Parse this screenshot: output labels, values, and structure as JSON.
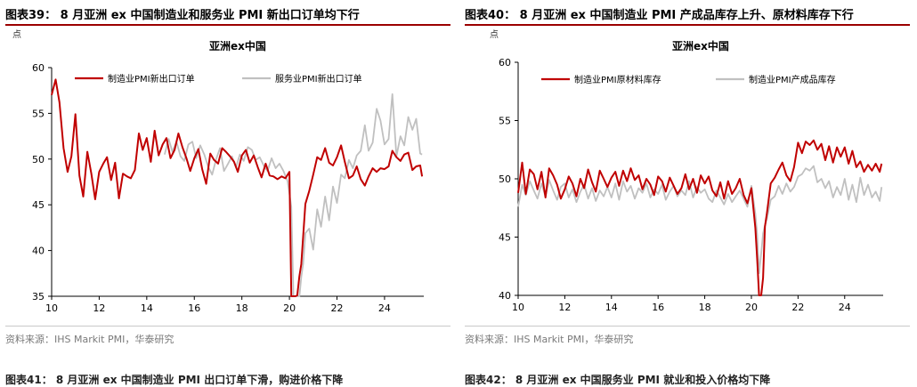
{
  "charts": [
    {
      "figure_title": "图表39： 8 月亚洲 ex 中国制造业和服务业 PMI 新出口订单均下行",
      "source": "资料来源：IHS Markit PMI，华泰研究",
      "next_title": "图表41： 8 月亚洲 ex 中国制造业 PMI 出口订单下滑，购进价格下降",
      "chart_data": {
        "type": "line",
        "title": "亚洲ex中国",
        "unit_label": "点",
        "ylim": [
          35,
          60
        ],
        "yticks": [
          35,
          40,
          45,
          50,
          55,
          60
        ],
        "xlim": [
          10,
          25.65
        ],
        "xticks": [
          10,
          12,
          14,
          16,
          18,
          20,
          22,
          24
        ],
        "xticklabels": [
          "10",
          "12",
          "14",
          "16",
          "18",
          "20",
          "22",
          "24"
        ],
        "legend_position": "top",
        "series": [
          {
            "name": "制造业PMI新出口订单",
            "color": "#c00000",
            "x": [
              10.0,
              10.17,
              10.33,
              10.5,
              10.67,
              10.83,
              11.0,
              11.17,
              11.33,
              11.5,
              11.67,
              11.83,
              12.0,
              12.17,
              12.33,
              12.5,
              12.67,
              12.83,
              13.0,
              13.17,
              13.33,
              13.5,
              13.67,
              13.83,
              14.0,
              14.17,
              14.33,
              14.5,
              14.67,
              14.83,
              15.0,
              15.17,
              15.33,
              15.5,
              15.67,
              15.83,
              16.0,
              16.17,
              16.33,
              16.5,
              16.67,
              16.83,
              17.0,
              17.17,
              17.33,
              17.5,
              17.67,
              17.83,
              18.0,
              18.17,
              18.33,
              18.5,
              18.67,
              18.83,
              19.0,
              19.17,
              19.33,
              19.5,
              19.67,
              19.83,
              20.0,
              20.08,
              20.17,
              20.25,
              20.33,
              20.42,
              20.5,
              20.67,
              20.83,
              21.0,
              21.17,
              21.33,
              21.5,
              21.67,
              21.83,
              22.0,
              22.17,
              22.33,
              22.5,
              22.67,
              22.83,
              23.0,
              23.17,
              23.33,
              23.5,
              23.67,
              23.83,
              24.0,
              24.17,
              24.33,
              24.5,
              24.67,
              24.83,
              25.0,
              25.17,
              25.33,
              25.5,
              25.58
            ],
            "y": [
              57.0,
              58.7,
              56.2,
              51.2,
              48.6,
              50.3,
              54.9,
              48.2,
              45.9,
              50.8,
              48.4,
              45.6,
              48.6,
              49.5,
              50.2,
              47.7,
              49.6,
              45.7,
              48.4,
              48.1,
              47.9,
              48.8,
              52.8,
              51.0,
              52.3,
              49.7,
              53.1,
              50.4,
              51.6,
              52.3,
              50.1,
              51.0,
              52.8,
              51.3,
              50.1,
              48.7,
              50.1,
              51.1,
              48.9,
              47.3,
              50.6,
              49.9,
              49.5,
              51.2,
              50.8,
              50.3,
              49.7,
              48.6,
              50.4,
              51.0,
              49.6,
              50.4,
              49.1,
              48.0,
              49.5,
              48.2,
              48.1,
              47.8,
              48.1,
              47.9,
              48.6,
              35.0,
              35.0,
              35.0,
              35.1,
              37.2,
              38.5,
              45.1,
              46.5,
              48.3,
              50.2,
              49.9,
              51.2,
              49.6,
              49.3,
              50.2,
              51.5,
              49.7,
              47.9,
              48.2,
              49.2,
              47.8,
              47.1,
              48.1,
              49.0,
              48.6,
              49.0,
              48.9,
              49.2,
              50.9,
              50.2,
              49.8,
              50.5,
              50.7,
              48.8,
              49.2,
              49.3,
              48.1
            ]
          },
          {
            "name": "服务业PMI新出口订单",
            "color": "#c0c0c0",
            "x": [
              14.75,
              14.92,
              15.08,
              15.25,
              15.42,
              15.58,
              15.75,
              15.92,
              16.08,
              16.25,
              16.42,
              16.58,
              16.75,
              16.92,
              17.08,
              17.25,
              17.42,
              17.58,
              17.75,
              17.92,
              18.08,
              18.25,
              18.42,
              18.58,
              18.75,
              18.92,
              19.08,
              19.25,
              19.42,
              19.58,
              19.75,
              19.92,
              20.08,
              20.17,
              20.25,
              20.33,
              20.42,
              20.5,
              20.58,
              20.67,
              20.83,
              21.0,
              21.17,
              21.33,
              21.5,
              21.67,
              21.83,
              22.0,
              22.17,
              22.33,
              22.5,
              22.67,
              22.83,
              23.0,
              23.17,
              23.33,
              23.5,
              23.67,
              23.83,
              24.0,
              24.17,
              24.33,
              24.5,
              24.67,
              24.83,
              25.0,
              25.17,
              25.33,
              25.5,
              25.58
            ],
            "y": [
              50.5,
              52.2,
              50.8,
              51.9,
              50.3,
              49.8,
              51.6,
              51.9,
              50.1,
              51.5,
              50.5,
              49.2,
              48.3,
              50.0,
              51.2,
              48.7,
              49.5,
              50.3,
              49.1,
              50.5,
              49.8,
              51.3,
              51.0,
              49.9,
              50.2,
              49.3,
              48.7,
              50.1,
              49.0,
              49.5,
              48.7,
              47.6,
              44.8,
              35.0,
              35.0,
              35.0,
              35.0,
              37.1,
              38.6,
              41.9,
              42.4,
              40.1,
              44.5,
              42.6,
              45.9,
              43.3,
              47.0,
              45.2,
              48.3,
              47.9,
              49.9,
              49.0,
              50.4,
              50.9,
              53.7,
              50.9,
              51.8,
              55.5,
              54.2,
              51.6,
              52.2,
              57.1,
              50.3,
              52.5,
              51.5,
              54.6,
              53.2,
              54.4,
              50.6,
              50.5
            ]
          }
        ]
      }
    },
    {
      "figure_title": "图表40： 8 月亚洲 ex 中国制造业 PMI 产成品库存上升、原材料库存下行",
      "source": "资料来源：IHS Markit PMI，华泰研究",
      "next_title": "图表42： 8 月亚洲 ex 中国服务业 PMI 就业和投入价格均下降",
      "chart_data": {
        "type": "line",
        "title": "亚洲ex中国",
        "unit_label": "点",
        "ylim": [
          40,
          60
        ],
        "yticks": [
          40,
          45,
          50,
          55,
          60
        ],
        "xlim": [
          10,
          25.65
        ],
        "xticks": [
          10,
          12,
          14,
          16,
          18,
          20,
          22,
          24
        ],
        "xticklabels": [
          "10",
          "12",
          "14",
          "16",
          "18",
          "20",
          "22",
          "24"
        ],
        "legend_position": "top",
        "series": [
          {
            "name": "制造业PMI原材料库存",
            "color": "#c00000",
            "x": [
              10.0,
              10.17,
              10.33,
              10.5,
              10.67,
              10.83,
              11.0,
              11.17,
              11.33,
              11.5,
              11.67,
              11.83,
              12.0,
              12.17,
              12.33,
              12.5,
              12.67,
              12.83,
              13.0,
              13.17,
              13.33,
              13.5,
              13.67,
              13.83,
              14.0,
              14.17,
              14.33,
              14.5,
              14.67,
              14.83,
              15.0,
              15.17,
              15.33,
              15.5,
              15.67,
              15.83,
              16.0,
              16.17,
              16.33,
              16.5,
              16.67,
              16.83,
              17.0,
              17.17,
              17.33,
              17.5,
              17.67,
              17.83,
              18.0,
              18.17,
              18.33,
              18.5,
              18.67,
              18.83,
              19.0,
              19.17,
              19.33,
              19.5,
              19.67,
              19.83,
              20.0,
              20.17,
              20.25,
              20.33,
              20.42,
              20.5,
              20.58,
              20.67,
              20.83,
              21.0,
              21.17,
              21.33,
              21.5,
              21.67,
              21.83,
              22.0,
              22.17,
              22.33,
              22.5,
              22.67,
              22.83,
              23.0,
              23.17,
              23.33,
              23.5,
              23.67,
              23.83,
              24.0,
              24.17,
              24.33,
              24.5,
              24.67,
              24.83,
              25.0,
              25.17,
              25.33,
              25.5,
              25.58
            ],
            "y": [
              48.8,
              51.4,
              48.7,
              50.8,
              50.4,
              49.1,
              50.6,
              48.4,
              50.9,
              50.3,
              49.5,
              48.3,
              49.1,
              50.2,
              49.6,
              48.5,
              50.0,
              49.2,
              50.8,
              49.7,
              48.9,
              50.7,
              50.0,
              49.3,
              50.1,
              50.6,
              49.4,
              50.7,
              49.8,
              50.9,
              49.9,
              50.3,
              49.1,
              50.0,
              49.5,
              48.6,
              50.2,
              49.8,
              48.9,
              50.1,
              49.4,
              48.7,
              49.2,
              50.4,
              49.1,
              50.0,
              48.8,
              50.3,
              49.6,
              50.2,
              49.0,
              48.5,
              49.7,
              48.3,
              49.8,
              48.7,
              49.2,
              50.0,
              48.6,
              47.9,
              49.2,
              45.8,
              43.1,
              40.0,
              40.0,
              41.5,
              45.9,
              47.1,
              49.6,
              50.1,
              50.8,
              51.4,
              50.3,
              49.8,
              51.0,
              53.1,
              52.2,
              53.2,
              52.9,
              53.3,
              52.5,
              53.0,
              51.6,
              52.8,
              51.4,
              52.7,
              51.9,
              52.7,
              51.3,
              52.4,
              51.0,
              51.5,
              50.6,
              51.2,
              50.7,
              51.3,
              50.6,
              51.3
            ]
          },
          {
            "name": "制造业PMI产成品库存",
            "color": "#c0c0c0",
            "x": [
              10.0,
              10.17,
              10.33,
              10.5,
              10.67,
              10.83,
              11.0,
              11.17,
              11.33,
              11.5,
              11.67,
              11.83,
              12.0,
              12.17,
              12.33,
              12.5,
              12.67,
              12.83,
              13.0,
              13.17,
              13.33,
              13.5,
              13.67,
              13.83,
              14.0,
              14.17,
              14.33,
              14.5,
              14.67,
              14.83,
              15.0,
              15.17,
              15.33,
              15.5,
              15.67,
              15.83,
              16.0,
              16.17,
              16.33,
              16.5,
              16.67,
              16.83,
              17.0,
              17.17,
              17.33,
              17.5,
              17.67,
              17.83,
              18.0,
              18.17,
              18.33,
              18.5,
              18.67,
              18.83,
              19.0,
              19.17,
              19.33,
              19.5,
              19.67,
              19.83,
              20.0,
              20.17,
              20.25,
              20.33,
              20.42,
              20.5,
              20.58,
              20.67,
              20.83,
              21.0,
              21.17,
              21.33,
              21.5,
              21.67,
              21.83,
              22.0,
              22.17,
              22.33,
              22.5,
              22.67,
              22.83,
              23.0,
              23.17,
              23.33,
              23.5,
              23.67,
              23.83,
              24.0,
              24.17,
              24.33,
              24.5,
              24.67,
              24.83,
              25.0,
              25.17,
              25.33,
              25.5,
              25.58
            ],
            "y": [
              47.6,
              49.5,
              48.6,
              49.8,
              49.0,
              48.3,
              49.6,
              48.5,
              49.9,
              49.0,
              48.2,
              49.3,
              49.6,
              48.4,
              49.1,
              48.0,
              48.9,
              49.5,
              48.3,
              49.2,
              48.1,
              49.0,
              48.5,
              49.3,
              48.4,
              49.6,
              48.2,
              49.8,
              48.9,
              49.4,
              48.3,
              49.2,
              48.8,
              49.6,
              48.4,
              49.1,
              48.7,
              49.5,
              48.2,
              48.9,
              49.4,
              48.5,
              49.0,
              48.6,
              49.8,
              48.4,
              49.3,
              48.8,
              49.1,
              48.3,
              48.0,
              49.0,
              48.4,
              47.8,
              48.7,
              48.0,
              48.5,
              49.0,
              48.3,
              47.6,
              49.4,
              47.0,
              45.2,
              41.9,
              43.6,
              45.3,
              46.0,
              46.6,
              48.2,
              48.5,
              49.4,
              48.7,
              49.6,
              48.9,
              49.3,
              50.2,
              50.4,
              50.9,
              50.7,
              51.1,
              49.7,
              50.0,
              49.2,
              49.8,
              48.4,
              49.3,
              48.6,
              50.0,
              48.2,
              49.5,
              48.0,
              50.1,
              48.6,
              49.5,
              48.4,
              48.9,
              48.1,
              49.3
            ]
          }
        ]
      }
    }
  ]
}
